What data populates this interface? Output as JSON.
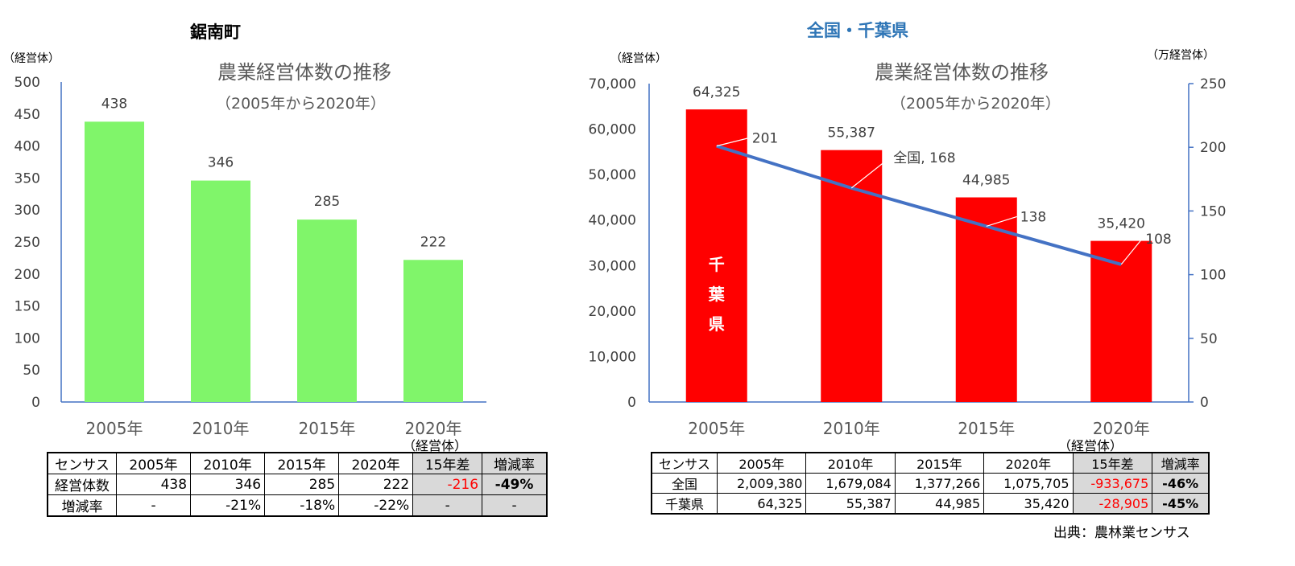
{
  "left": {
    "heading": "鋸南町",
    "unit": "（経営体）",
    "title": "農業経営体数の推移",
    "subtitle": "（2005年から2020年）",
    "table_unit": "（経営体）",
    "table": {
      "header": [
        "センサス",
        "2005年",
        "2010年",
        "2015年",
        "2020年",
        "15年差",
        "増減率"
      ],
      "rows": [
        [
          "経営体数",
          "438",
          "346",
          "285",
          "222",
          "-216",
          "-49%"
        ],
        [
          "増減率",
          "-",
          "-21%",
          "-18%",
          "-22%",
          "-",
          "-"
        ]
      ]
    }
  },
  "right": {
    "heading": "全国・千葉県",
    "unit_left": "（経営体）",
    "unit_right": "（万経営体）",
    "title": "農業経営体数の推移",
    "subtitle": "（2005年から2020年）",
    "bar_label": "千葉県",
    "table_unit": "（経営体）",
    "source": "出典：農林業センサス",
    "table": {
      "header": [
        "センサス",
        "2005年",
        "2010年",
        "2015年",
        "2020年",
        "15年差",
        "増減率"
      ],
      "rows": [
        [
          "全国",
          "2,009,380",
          "1,679,084",
          "1,377,266",
          "1,075,705",
          "-933,675",
          "-46%"
        ],
        [
          "千葉県",
          "64,325",
          "55,387",
          "44,985",
          "35,420",
          "-28,905",
          "-45%"
        ]
      ]
    }
  },
  "colors": {
    "green_bar": "#80f56a",
    "red_bar": "#ff0000",
    "line": "#4472c4",
    "heading_blue": "#2e75b6",
    "axis": "#4472c4"
  },
  "chart_data": [
    {
      "type": "bar",
      "categories": [
        "2005年",
        "2010年",
        "2015年",
        "2020年"
      ],
      "series": [
        {
          "values": [
            438,
            346,
            285,
            222
          ]
        }
      ],
      "data_labels": [
        "438",
        "346",
        "285",
        "222"
      ],
      "title": "農業経営体数の推移",
      "subtitle": "（2005年から2020年）",
      "ylabel": "（経営体）",
      "ylim": [
        0,
        500
      ],
      "yticks": [
        0,
        50,
        100,
        150,
        200,
        250,
        300,
        350,
        400,
        450,
        500
      ],
      "ytick_labels": [
        "0",
        "50",
        "100",
        "150",
        "200",
        "250",
        "300",
        "350",
        "400",
        "450",
        "500"
      ],
      "grid": false,
      "legend": "none"
    },
    {
      "type": "bar",
      "categories": [
        "2005年",
        "2010年",
        "2015年",
        "2020年"
      ],
      "series": [
        {
          "name": "千葉県",
          "type": "bar",
          "axis": "left",
          "values": [
            64325,
            55387,
            44985,
            35420
          ],
          "labels": [
            "64,325",
            "55,387",
            "44,985",
            "35,420"
          ]
        },
        {
          "name": "全国",
          "type": "line",
          "axis": "right",
          "values": [
            201,
            168,
            138,
            108
          ],
          "labels": [
            "201",
            "全国, 168",
            "138",
            "108"
          ]
        }
      ],
      "title": "農業経営体数の推移",
      "subtitle": "（2005年から2020年）",
      "ylabel": "（経営体）",
      "ylabel_right": "（万経営体）",
      "ylim": [
        0,
        70000
      ],
      "ylim_right": [
        0,
        250
      ],
      "yticks": [
        0,
        10000,
        20000,
        30000,
        40000,
        50000,
        60000,
        70000
      ],
      "ytick_labels": [
        "0",
        "10,000",
        "20,000",
        "30,000",
        "40,000",
        "50,000",
        "60,000",
        "70,000"
      ],
      "yticks_right": [
        0,
        50,
        100,
        150,
        200,
        250
      ],
      "ytick_labels_right": [
        "0",
        "50",
        "100",
        "150",
        "200",
        "250"
      ],
      "grid": false,
      "legend": "none"
    }
  ]
}
